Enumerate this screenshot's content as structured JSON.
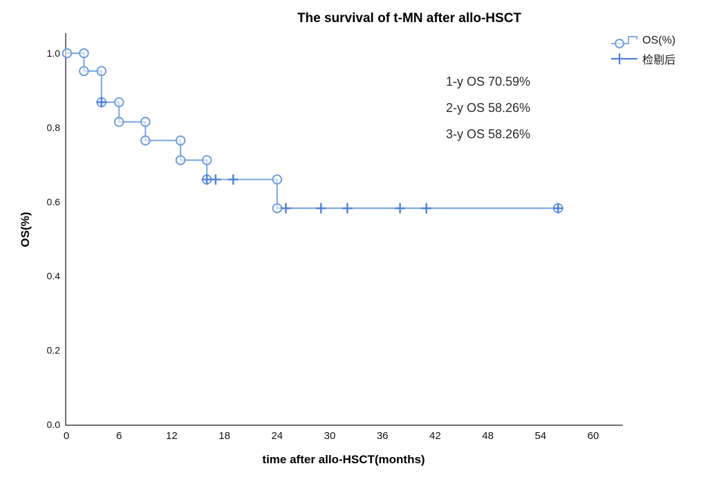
{
  "title": "The survival of t-MN after allo-HSCT",
  "legend": {
    "os_label": "OS(%)",
    "censored_label": "检剔后"
  },
  "annotations": {
    "line1": "1-y OS 70.59%",
    "line2": "2-y OS 58.26%",
    "line3": "3-y OS 58.26%"
  },
  "axes": {
    "x": {
      "label": "time after allo-HSCT(months)",
      "ticks": [
        0,
        6,
        12,
        18,
        24,
        30,
        36,
        42,
        48,
        54,
        60
      ]
    },
    "y": {
      "label": "OS(%)",
      "ticks": [
        "1.0",
        "0.8",
        "0.6",
        "0.4",
        "0.2",
        "0.0"
      ]
    }
  },
  "chart_data": {
    "type": "line",
    "subtype": "kaplan-meier-step",
    "title": "The survival of t-MN after allo-HSCT",
    "xlabel": "time after allo-HSCT(months)",
    "ylabel": "OS(%)",
    "xlim": [
      0,
      63.5
    ],
    "ylim": [
      0.0,
      1.0
    ],
    "grid": false,
    "legend_position": "top-right",
    "series": [
      {
        "name": "OS(%)",
        "steps": [
          {
            "t": 0,
            "s": 1.0
          },
          {
            "t": 2,
            "s": 0.952
          },
          {
            "t": 4,
            "s": 0.868
          },
          {
            "t": 6,
            "s": 0.815
          },
          {
            "t": 9,
            "s": 0.765
          },
          {
            "t": 13,
            "s": 0.712
          },
          {
            "t": 16,
            "s": 0.66
          },
          {
            "t": 24,
            "s": 0.5826
          }
        ],
        "end_time": 56,
        "censored": [
          {
            "t": 4,
            "s": 0.868
          },
          {
            "t": 16,
            "s": 0.66
          },
          {
            "t": 17,
            "s": 0.66
          },
          {
            "t": 19,
            "s": 0.66
          },
          {
            "t": 25,
            "s": 0.5826
          },
          {
            "t": 29,
            "s": 0.5826
          },
          {
            "t": 32,
            "s": 0.5826
          },
          {
            "t": 38,
            "s": 0.5826
          },
          {
            "t": 41,
            "s": 0.5826
          },
          {
            "t": 56,
            "s": 0.5826
          }
        ]
      }
    ],
    "annotations": [
      "1-y OS 70.59%",
      "2-y OS 58.26%",
      "3-y OS 58.26%"
    ],
    "colors": {
      "line": "#85ace3",
      "marker_ring": "#6f9fe0",
      "censor": "#4c80dd",
      "axis": "#6e6e6e",
      "tick_text": "#111111"
    }
  }
}
